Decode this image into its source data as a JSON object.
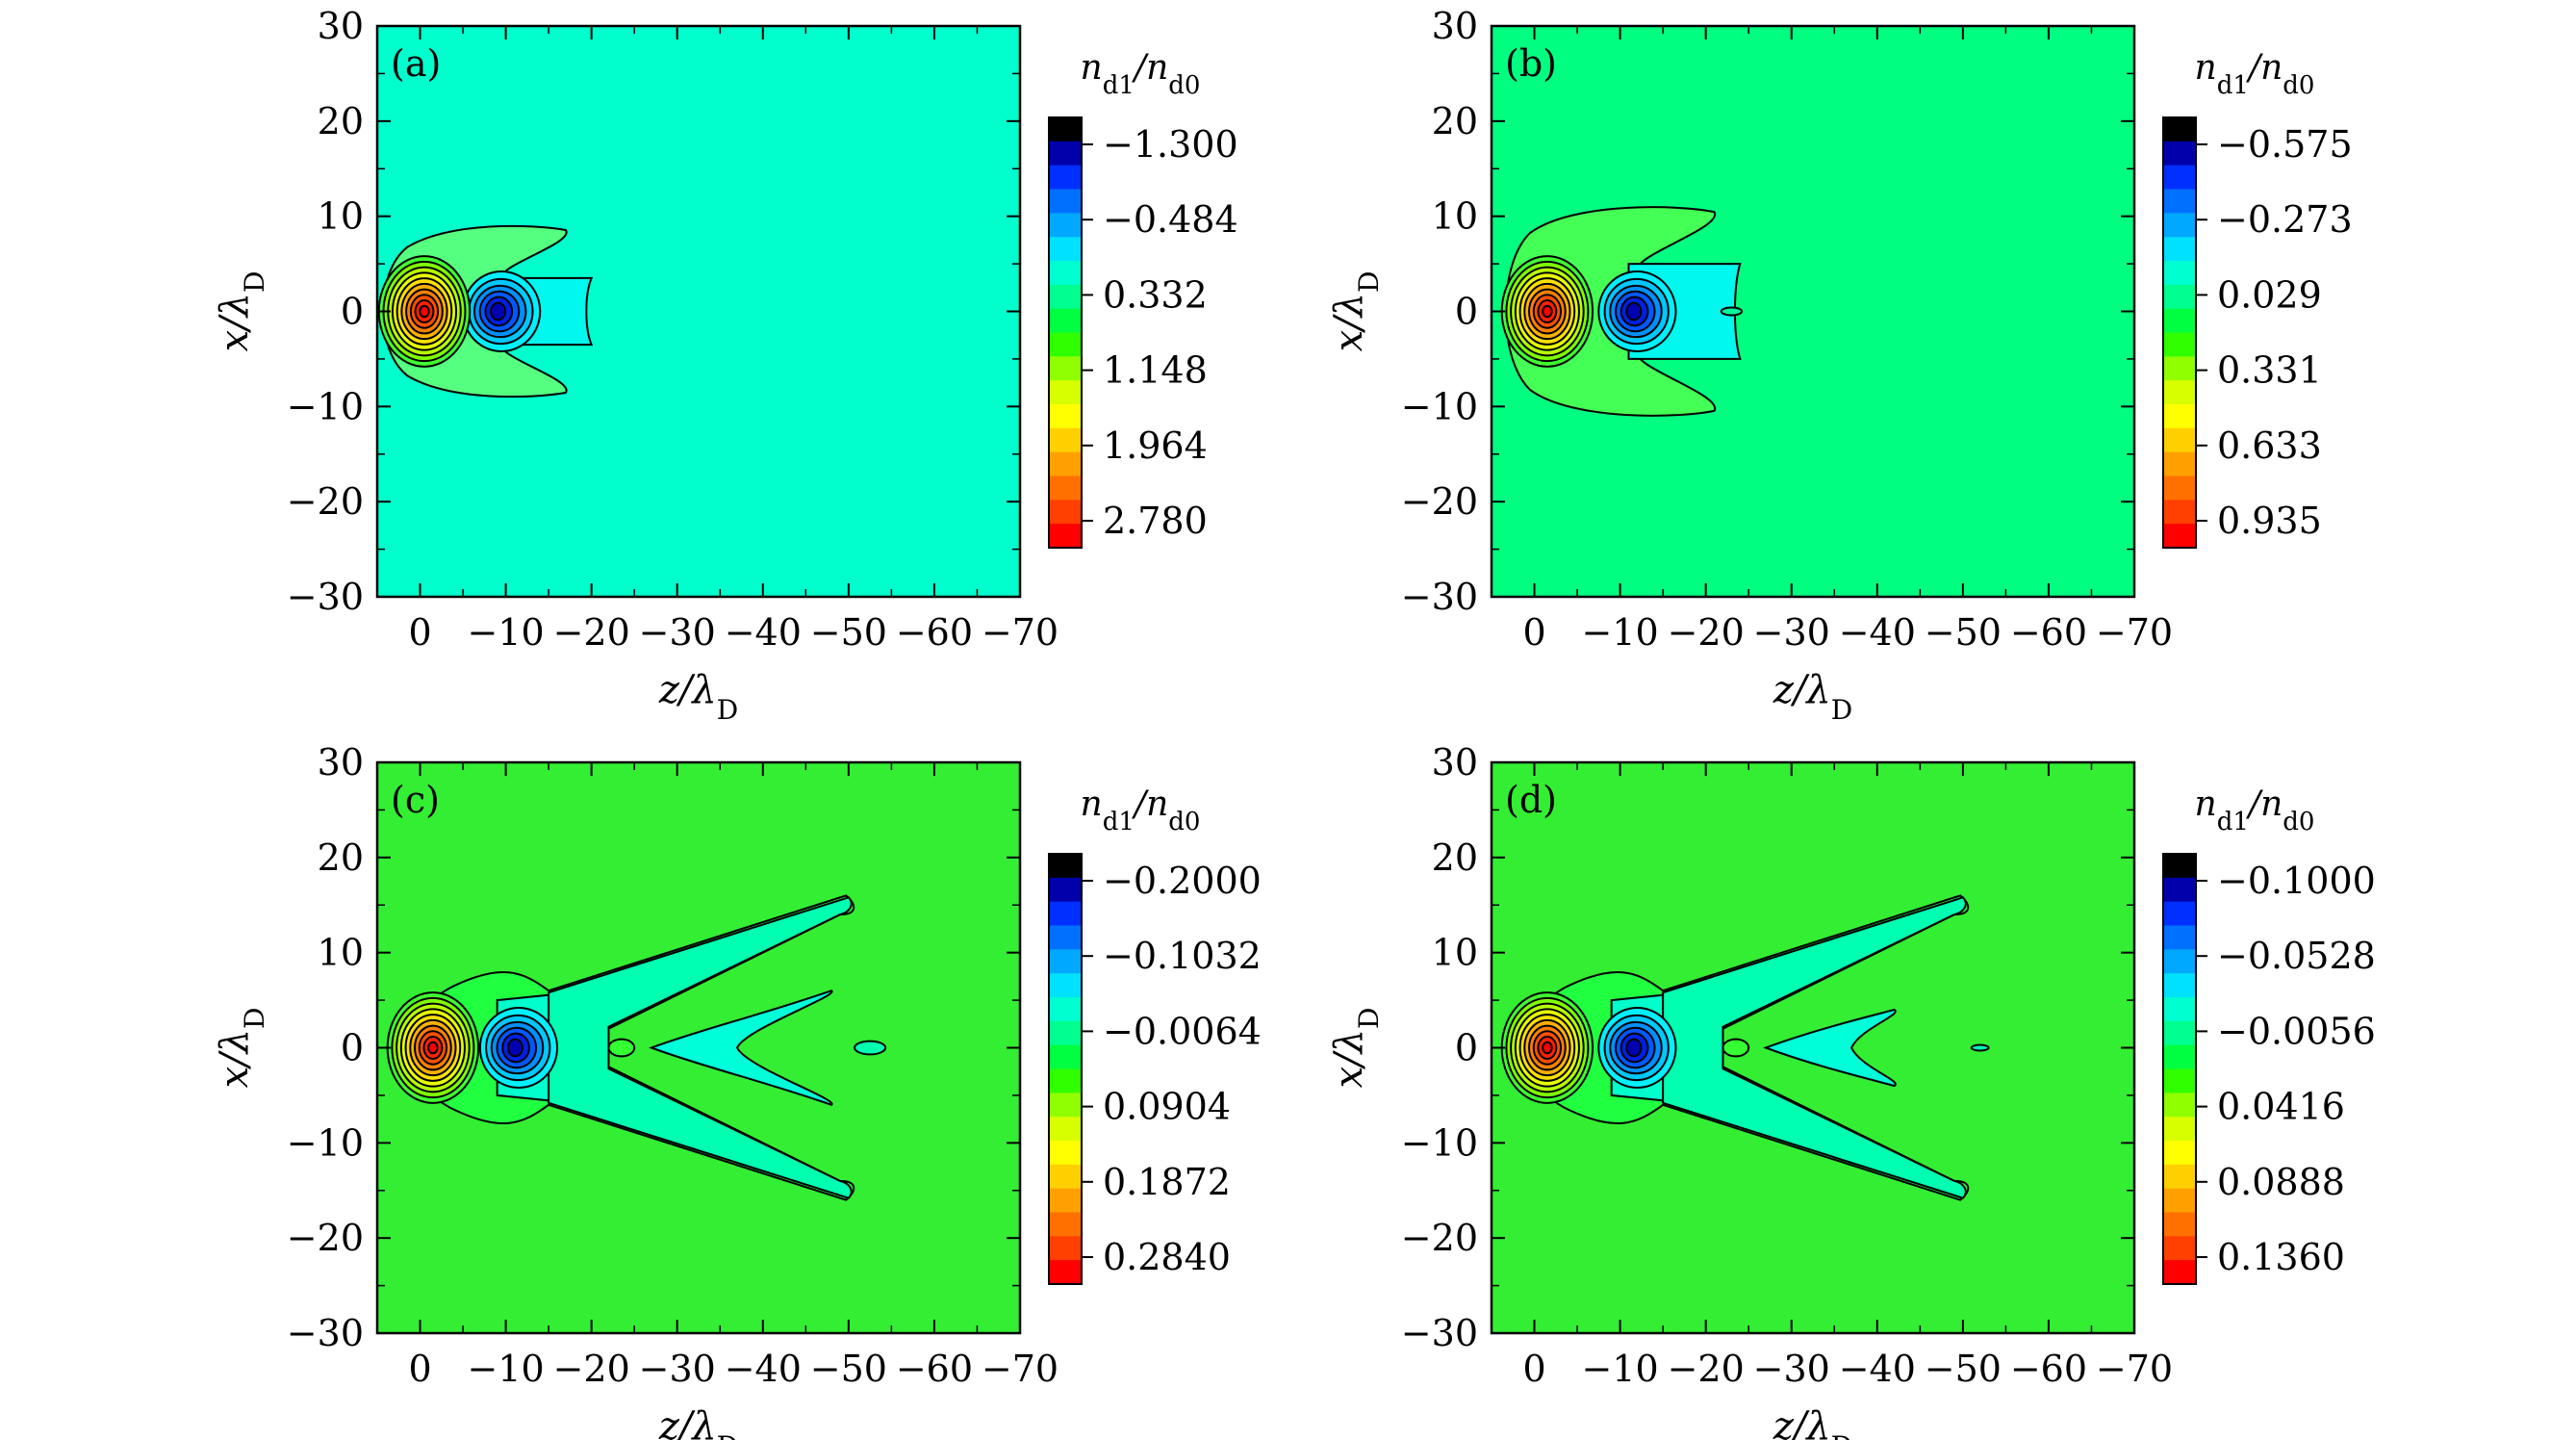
{
  "figure": {
    "xlabel": "z/λD",
    "ylabel": "x/λD",
    "colorbar_title": "nd1/nd0"
  },
  "chart_data": [
    {
      "type": "heatmap",
      "panel_label": "(a)",
      "x_ticks": [
        "0",
        "−10",
        "−20",
        "−30",
        "−40",
        "−50",
        "−60",
        "−70"
      ],
      "y_ticks": [
        "30",
        "20",
        "10",
        "0",
        "−10",
        "−20",
        "−30"
      ],
      "xlim": [
        5,
        -70
      ],
      "ylim": [
        -30,
        30
      ],
      "background_color": "#00ffcc",
      "colorbar_labels": [
        "−1.300",
        "−0.484",
        "0.332",
        "1.148",
        "1.964",
        "2.780"
      ],
      "features": {
        "peak_positive": {
          "z": -0.5,
          "x": 0
        },
        "peak_negative": {
          "z": -9.5,
          "x": 0
        },
        "outer_lobe_extent_z": -17,
        "outer_lobe_extent_x": 9,
        "inner_lobe_extent_z": -20,
        "inner_lobe_extent_x": 3.5
      }
    },
    {
      "type": "heatmap",
      "panel_label": "(b)",
      "x_ticks": [
        "0",
        "−10",
        "−20",
        "−30",
        "−40",
        "−50",
        "−60",
        "−70"
      ],
      "y_ticks": [
        "30",
        "20",
        "10",
        "0",
        "−10",
        "−20",
        "−30"
      ],
      "xlim": [
        5,
        -70
      ],
      "ylim": [
        -30,
        30
      ],
      "background_color": "#00ff80",
      "colorbar_labels": [
        "−0.575",
        "−0.273",
        "0.029",
        "0.331",
        "0.633",
        "0.935"
      ],
      "features": {
        "peak_positive": {
          "z": -1.5,
          "x": 0
        },
        "peak_negative": {
          "z": -12,
          "x": 0
        },
        "outer_lobe_extent_z": -21,
        "outer_lobe_extent_x": 11,
        "inner_lobe_extent_z": -24,
        "inner_lobe_extent_x": 5
      }
    },
    {
      "type": "heatmap",
      "panel_label": "(c)",
      "x_ticks": [
        "0",
        "−10",
        "−20",
        "−30",
        "−40",
        "−50",
        "−60",
        "−70"
      ],
      "y_ticks": [
        "30",
        "20",
        "10",
        "0",
        "−10",
        "−20",
        "−30"
      ],
      "xlim": [
        5,
        -70
      ],
      "ylim": [
        -30,
        30
      ],
      "background_color": "#33ee33",
      "colorbar_labels": [
        "−0.2000",
        "−0.1032",
        "−0.0064",
        "0.0904",
        "0.1872",
        "0.2840"
      ],
      "features": {
        "peak_positive": {
          "z": -1.5,
          "x": 0
        },
        "peak_negative": {
          "z": -11.5,
          "x": 0
        },
        "outer_wing_tip_z": -50,
        "outer_wing_tip_x": 16,
        "inner_wing_tip_z": -48,
        "inner_wing_tip_x": 6
      }
    },
    {
      "type": "heatmap",
      "panel_label": "(d)",
      "x_ticks": [
        "0",
        "−10",
        "−20",
        "−30",
        "−40",
        "−50",
        "−60",
        "−70"
      ],
      "y_ticks": [
        "30",
        "20",
        "10",
        "0",
        "−10",
        "−20",
        "−30"
      ],
      "xlim": [
        5,
        -70
      ],
      "ylim": [
        -30,
        30
      ],
      "background_color": "#33ee33",
      "colorbar_labels": [
        "−0.1000",
        "−0.0528",
        "−0.0056",
        "0.0416",
        "0.0888",
        "0.1360"
      ],
      "features": {
        "peak_positive": {
          "z": -1.5,
          "x": 0
        },
        "peak_negative": {
          "z": -12,
          "x": 0
        },
        "outer_wing_tip_z": -50,
        "outer_wing_tip_x": 16,
        "inner_wing_tip_z": -42,
        "inner_wing_tip_x": 4
      }
    }
  ],
  "colorbar_colors": [
    "#000000",
    "#0000aa",
    "#0030ff",
    "#0070ff",
    "#00a8ff",
    "#00e0ff",
    "#00ffd0",
    "#00ff90",
    "#00ff40",
    "#30ff00",
    "#90ff00",
    "#d8ff00",
    "#ffff00",
    "#ffd000",
    "#ffa000",
    "#ff7000",
    "#ff4000",
    "#ff0000"
  ]
}
